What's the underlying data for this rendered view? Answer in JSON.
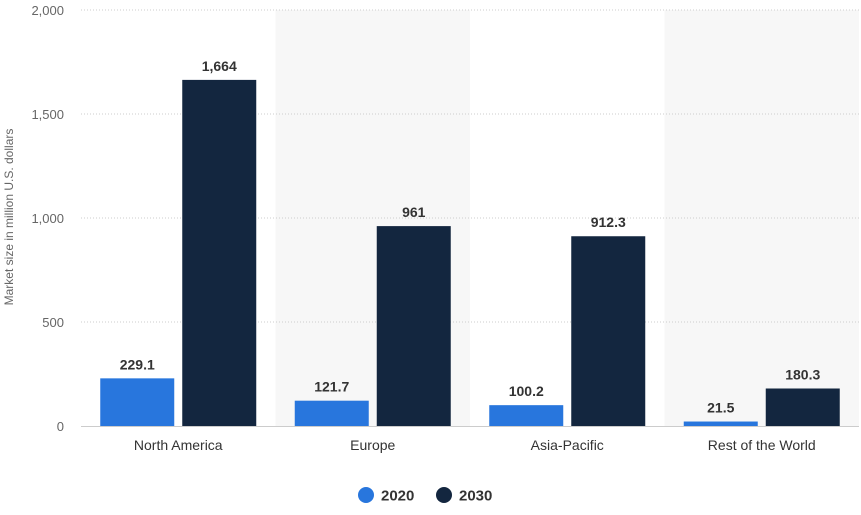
{
  "chart_data": {
    "type": "bar",
    "title": "",
    "xlabel": "",
    "ylabel": "Market size in million U.S. dollars",
    "ylim": [
      0,
      2000
    ],
    "y_ticks": [
      "0",
      "500",
      "1,000",
      "1,500",
      "2,000"
    ],
    "y_tick_values": [
      0,
      500,
      1000,
      1500,
      2000
    ],
    "categories": [
      "North America",
      "Europe",
      "Asia-Pacific",
      "Rest of the World"
    ],
    "series": [
      {
        "name": "2020",
        "values": [
          229.1,
          121.7,
          100.2,
          21.5
        ],
        "labels": [
          "229.1",
          "121.7",
          "100.2",
          "21.5"
        ],
        "color": "#2876dd"
      },
      {
        "name": "2030",
        "values": [
          1664,
          961,
          912.3,
          180.3
        ],
        "labels": [
          "1,664",
          "961",
          "912.3",
          "180.3"
        ],
        "color": "#13263f"
      }
    ],
    "grid": true,
    "alternating_category_bands": true,
    "band_color": "#f7f7f7",
    "grid_color": "#cccccc",
    "legend_position": "bottom-center"
  }
}
